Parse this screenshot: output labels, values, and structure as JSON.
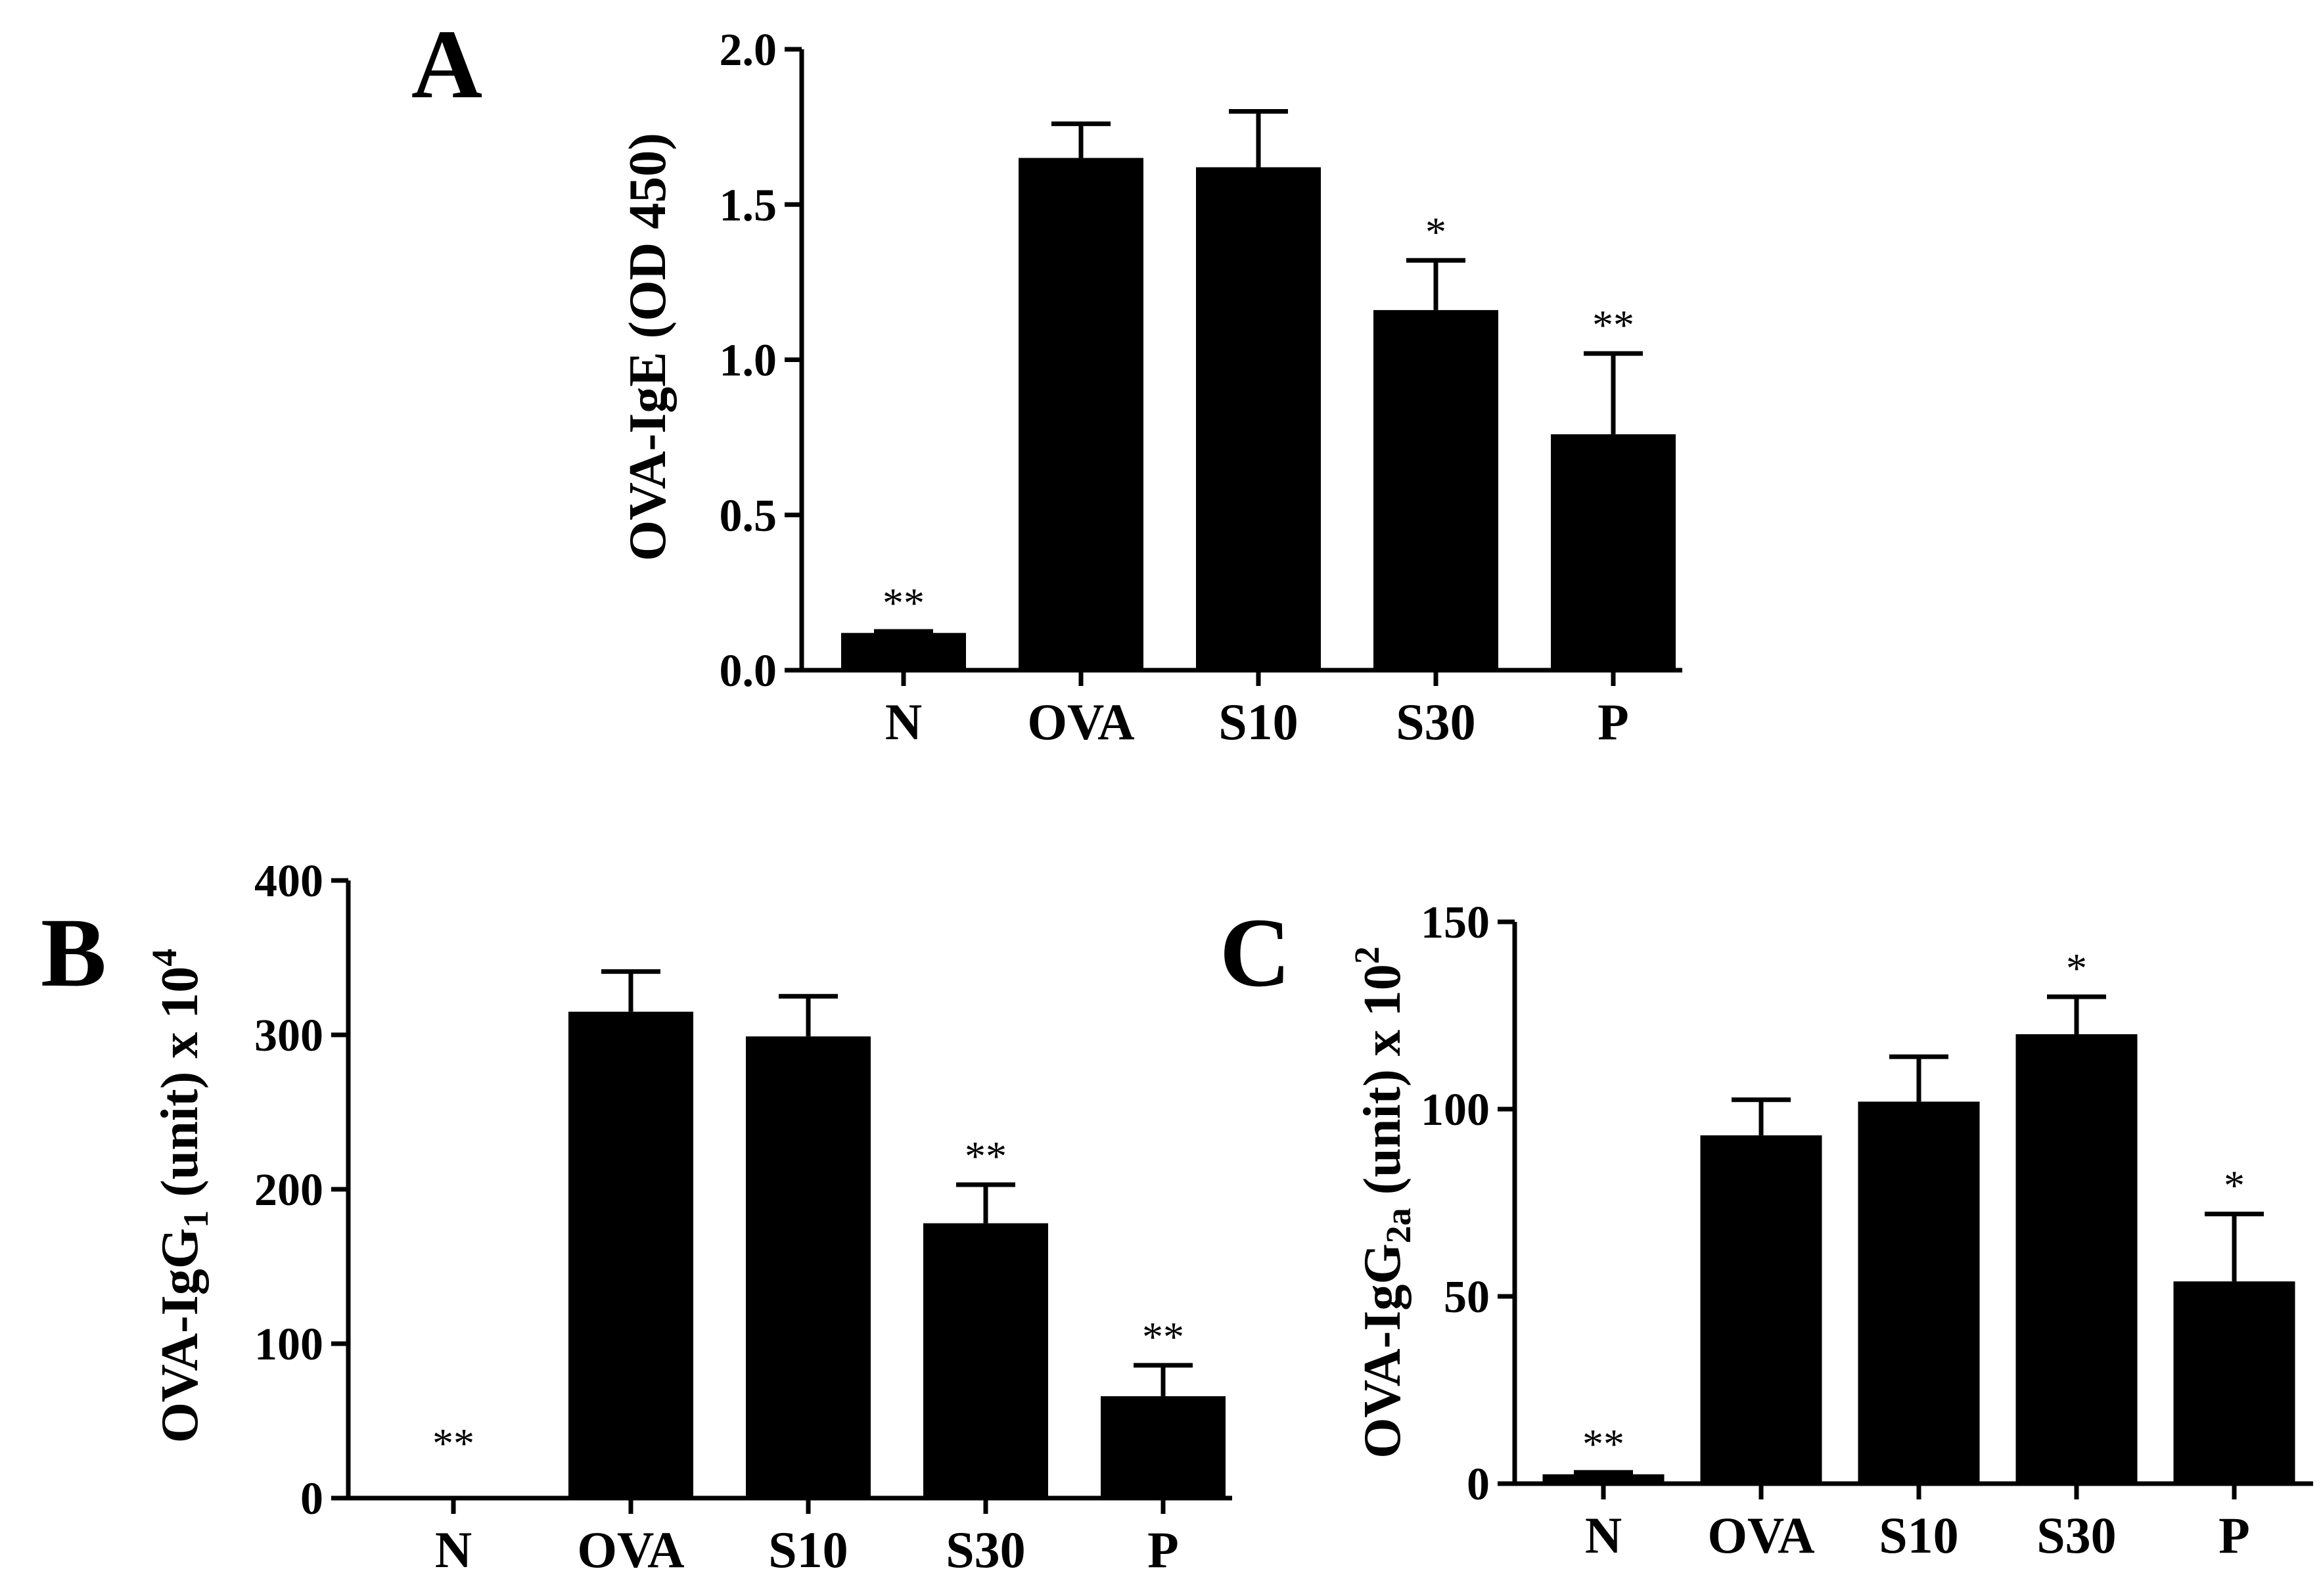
{
  "chart_data": [
    {
      "panel": "A",
      "type": "bar",
      "ylabel": {
        "main": "OVA-IgE (OD 450)",
        "sub": "",
        "suffix": "",
        "sup": ""
      },
      "categories": [
        "N",
        "OVA",
        "S10",
        "S30",
        "P"
      ],
      "values": [
        0.12,
        1.65,
        1.62,
        1.16,
        0.76
      ],
      "errors": [
        0.005,
        0.11,
        0.18,
        0.16,
        0.26
      ],
      "significance": [
        "**",
        "",
        "",
        "*",
        "**"
      ],
      "ylim": [
        0,
        2.0
      ],
      "yticks": [
        "0.0",
        "0.5",
        "1.0",
        "1.5",
        "2.0"
      ],
      "ytick_values": [
        0,
        0.5,
        1.0,
        1.5,
        2.0
      ],
      "bar_color": "#000000"
    },
    {
      "panel": "B",
      "type": "bar",
      "ylabel": {
        "main": "OVA-IgG",
        "sub": "1",
        "suffix": " (unit) x 10",
        "sup": "4"
      },
      "categories": [
        "N",
        "OVA",
        "S10",
        "S30",
        "P"
      ],
      "values": [
        0,
        315,
        299,
        178,
        66
      ],
      "errors": [
        0,
        26,
        26,
        25,
        20
      ],
      "significance": [
        "**",
        "",
        "",
        "**",
        "**"
      ],
      "ylim": [
        0,
        400
      ],
      "yticks": [
        "0",
        "100",
        "200",
        "300",
        "400"
      ],
      "ytick_values": [
        0,
        100,
        200,
        300,
        400
      ],
      "bar_color": "#000000"
    },
    {
      "panel": "C",
      "type": "bar",
      "ylabel": {
        "main": "OVA-IgG",
        "sub": "2a",
        "suffix": " (unit) x 10",
        "sup": "2"
      },
      "categories": [
        "N",
        "OVA",
        "S10",
        "S30",
        "P"
      ],
      "values": [
        2.5,
        93,
        102,
        120,
        54
      ],
      "errors": [
        0.5,
        9.5,
        12,
        10,
        18
      ],
      "significance": [
        "**",
        "",
        "",
        "*",
        "*"
      ],
      "ylim": [
        0,
        150
      ],
      "yticks": [
        "0",
        "50",
        "100",
        "150"
      ],
      "ytick_values": [
        0,
        50,
        100,
        150
      ],
      "bar_color": "#000000"
    }
  ]
}
